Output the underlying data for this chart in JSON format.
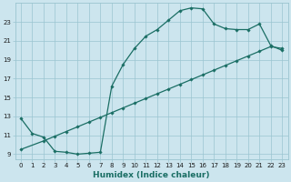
{
  "xlabel": "Humidex (Indice chaleur)",
  "ylabel": "",
  "bg_color": "#cce5ee",
  "grid_color": "#9ac4d0",
  "line_color": "#1a6e64",
  "line1_x": [
    0,
    1,
    2,
    3,
    4,
    5,
    6,
    7,
    8,
    9,
    10,
    11,
    12,
    13,
    14,
    15,
    16,
    17,
    18,
    19,
    20,
    21,
    22,
    23
  ],
  "line1_y": [
    12.8,
    11.2,
    10.8,
    9.3,
    9.2,
    9.0,
    9.1,
    9.2,
    16.2,
    18.5,
    20.2,
    21.5,
    22.2,
    23.2,
    24.2,
    24.5,
    24.4,
    22.8,
    22.3,
    22.2,
    22.2,
    22.8,
    20.5,
    20.0
  ],
  "line2_x": [
    0,
    2,
    3,
    4,
    5,
    6,
    7,
    8,
    9,
    10,
    11,
    12,
    13,
    14,
    15,
    16,
    17,
    18,
    19,
    20,
    21,
    22,
    23
  ],
  "line2_y": [
    9.5,
    10.4,
    10.9,
    11.4,
    11.9,
    12.4,
    12.9,
    13.4,
    13.9,
    14.4,
    14.9,
    15.4,
    15.9,
    16.4,
    16.9,
    17.4,
    17.9,
    18.4,
    18.9,
    19.4,
    19.9,
    20.4,
    20.2
  ],
  "xlim": [
    -0.5,
    23.5
  ],
  "ylim": [
    8.5,
    25.0
  ],
  "yticks": [
    9,
    11,
    13,
    15,
    17,
    19,
    21,
    23
  ],
  "xticks": [
    0,
    1,
    2,
    3,
    4,
    5,
    6,
    7,
    8,
    9,
    10,
    11,
    12,
    13,
    14,
    15,
    16,
    17,
    18,
    19,
    20,
    21,
    22,
    23
  ],
  "marker": "D",
  "markersize": 1.8,
  "linewidth": 0.9,
  "tick_fontsize": 5.0,
  "xlabel_fontsize": 6.5
}
